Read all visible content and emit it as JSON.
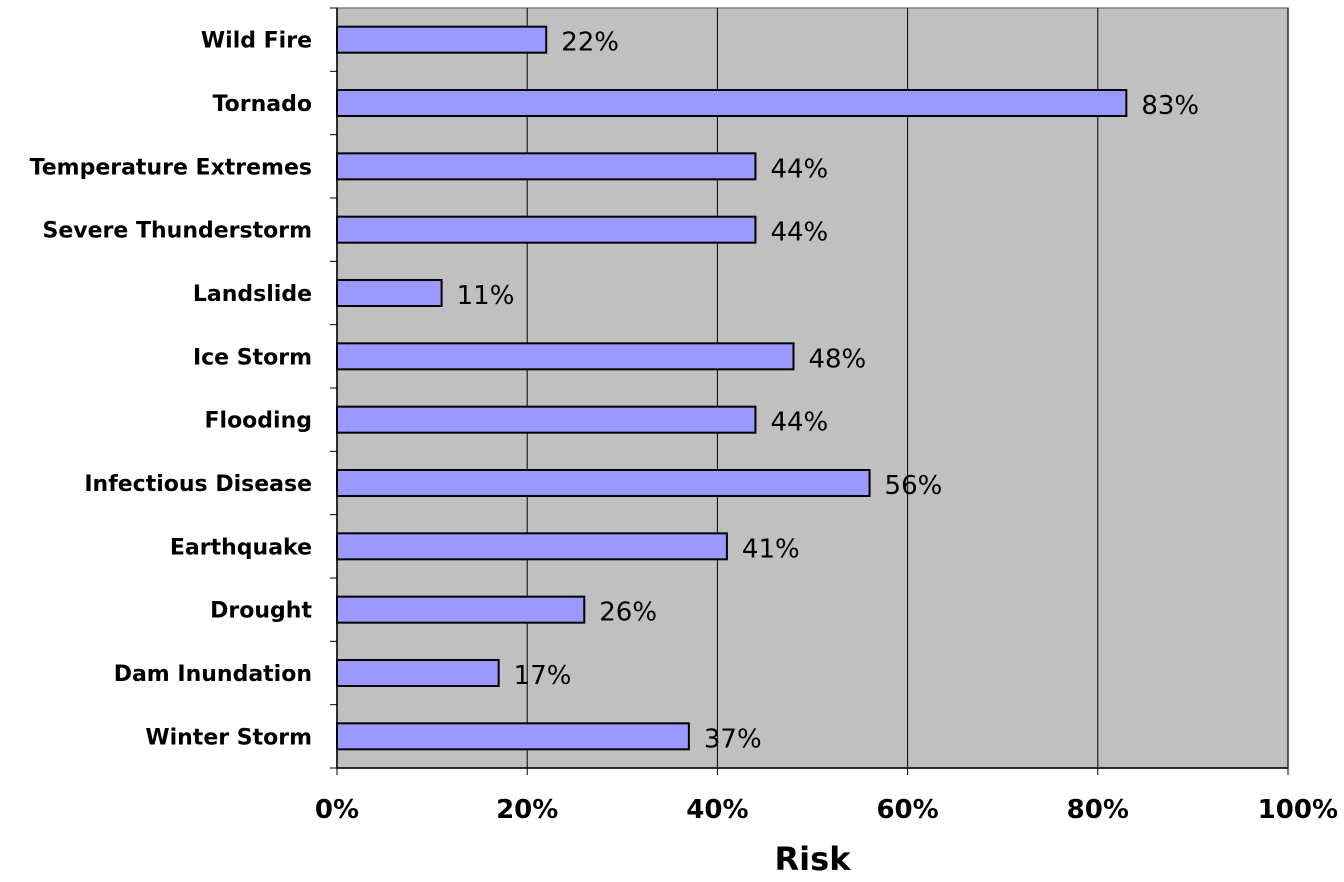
{
  "chart_data": {
    "type": "bar",
    "orientation": "horizontal",
    "categories": [
      "Wild Fire",
      "Tornado",
      "Temperature Extremes",
      "Severe Thunderstorm",
      "Landslide",
      "Ice Storm",
      "Flooding",
      "Infectious Disease",
      "Earthquake",
      "Drought",
      "Dam Inundation",
      "Winter Storm"
    ],
    "values": [
      22,
      83,
      44,
      44,
      11,
      48,
      44,
      56,
      41,
      26,
      17,
      37
    ],
    "data_labels": [
      "22%",
      "83%",
      "44%",
      "44%",
      "11%",
      "48%",
      "44%",
      "56%",
      "41%",
      "26%",
      "17%",
      "37%"
    ],
    "x_ticks": [
      "0%",
      "20%",
      "40%",
      "60%",
      "80%",
      "100%"
    ],
    "xlim": [
      0,
      100
    ],
    "xlabel": "Risk",
    "ylabel": "",
    "title": "",
    "grid": "vertical",
    "legend": "none",
    "colors": {
      "bar_fill": "#9999ff",
      "bar_stroke": "#000000",
      "plot_background": "#c0c0c0",
      "gridline": "#000000"
    }
  }
}
